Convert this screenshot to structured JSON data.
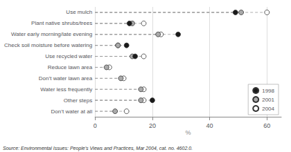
{
  "chart_data": {
    "type": "dot",
    "categories": [
      "Use mulch",
      "Plant native shrubs/trees",
      "Water early morning/late evening",
      "Check soil moisture before watering",
      "Use recycled water",
      "Reduce lawn area",
      "Don’t water lawn area",
      "Water less frequently",
      "Other steps",
      "Don’t water at all"
    ],
    "series": [
      {
        "name": "1998",
        "color": "#1a1a1a",
        "values": [
          49,
          12,
          29,
          11,
          14,
          null,
          null,
          null,
          20,
          null
        ]
      },
      {
        "name": "2001",
        "color": "#aaaaaa",
        "values": [
          51,
          13,
          22,
          8,
          13,
          4,
          9,
          16,
          16,
          7
        ]
      },
      {
        "name": "2004",
        "color": "#ffffff",
        "values": [
          60,
          17,
          23,
          8,
          17,
          5,
          10,
          17,
          17,
          11
        ]
      }
    ],
    "xlabel": "%",
    "xlim": [
      0,
      65
    ],
    "xticks": [
      0,
      20,
      40,
      60
    ],
    "annotation": "Source: Environmental Issues: People’s Views and Practices, Mar 2004, cat. no. 4602.0.",
    "orientation": "horizontal",
    "line_style": "dashed",
    "grid": true,
    "legend": "lower right",
    "marker": "circle"
  }
}
